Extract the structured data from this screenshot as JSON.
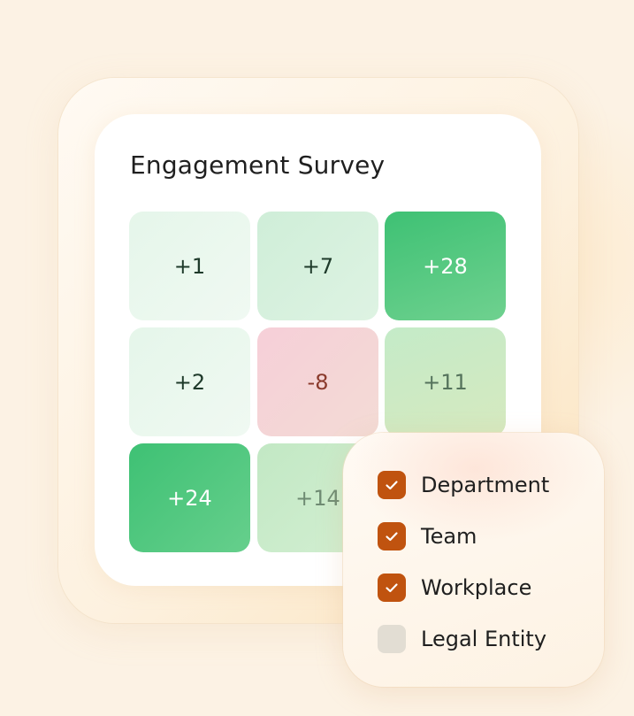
{
  "survey": {
    "title": "Engagement Survey",
    "cells": [
      {
        "value": "+1",
        "bg": "linear-gradient(135deg,#e5f6ea,#f0f9f2)",
        "color": "#1e3a2a"
      },
      {
        "value": "+7",
        "bg": "linear-gradient(135deg,#cfeed8,#def3e3)",
        "color": "#1e3a2a"
      },
      {
        "value": "+28",
        "bg": "linear-gradient(160deg,#3ec174,#6fd18f)",
        "color": "#ffffff"
      },
      {
        "value": "+2",
        "bg": "linear-gradient(135deg,#e5f6ea,#f0f9f2)",
        "color": "#1e3a2a"
      },
      {
        "value": "-8",
        "bg": "linear-gradient(135deg,#f6cfd8,#f3dbd5)",
        "color": "#8a3a2c"
      },
      {
        "value": "+11",
        "bg": "linear-gradient(160deg,#c4ebc8,#d6e9bf)",
        "color": "#55735c"
      },
      {
        "value": "+24",
        "bg": "linear-gradient(135deg,#3ec174,#66cf8c)",
        "color": "#ffffff"
      },
      {
        "value": "+14",
        "bg": "linear-gradient(135deg,#c2e8c4,#d3efd2)",
        "color": "#6e8b73"
      },
      {
        "value": "",
        "bg": "#ffffff",
        "color": "#1e3a2a"
      }
    ]
  },
  "filters": {
    "accent": "#c0530f",
    "items": [
      {
        "label": "Department",
        "checked": true
      },
      {
        "label": "Team",
        "checked": true
      },
      {
        "label": "Workplace",
        "checked": true
      },
      {
        "label": "Legal Entity",
        "checked": false
      }
    ]
  }
}
